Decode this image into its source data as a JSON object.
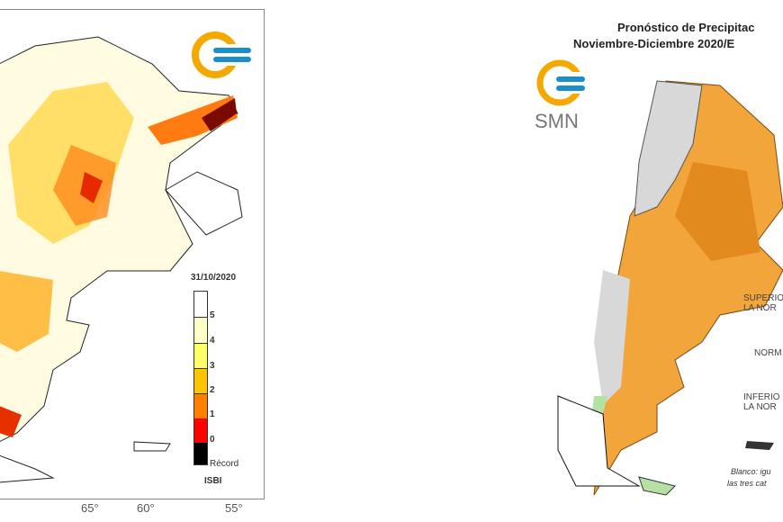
{
  "left_map": {
    "date": "31/10/2020",
    "index_label": "ISBI",
    "legend": [
      {
        "label": "5",
        "color": "#ffffff"
      },
      {
        "label": "4",
        "color": "#ffffc8"
      },
      {
        "label": "3",
        "color": "#ffff66"
      },
      {
        "label": "2",
        "color": "#ffc400"
      },
      {
        "label": "1",
        "color": "#ff7f00"
      },
      {
        "label": "0",
        "color": "#ff0000"
      },
      {
        "label": "Récord",
        "color": "#000000"
      }
    ],
    "longitude_ticks": [
      "65°",
      "60°",
      "55°"
    ]
  },
  "right_map": {
    "title_line1": "Pronóstico de Precipitac",
    "title_line2": "Noviembre-Diciembre 2020/E",
    "logo_text": "SMN",
    "categories": [
      {
        "line1": "SUPERIO",
        "line2": "LA NOR"
      },
      {
        "line1": "NORM",
        "line2": ""
      },
      {
        "line1": "INFERIO",
        "line2": "LA NOR"
      }
    ],
    "note_line1": "Blanco: igu",
    "note_line2": "las tres cat"
  },
  "colors": {
    "orange": "#f2a53a",
    "dark_orange": "#e38a1f",
    "grey": "#d8d8d8",
    "logo_yellow": "#f5a800",
    "logo_blue": "#1a8fc9"
  }
}
